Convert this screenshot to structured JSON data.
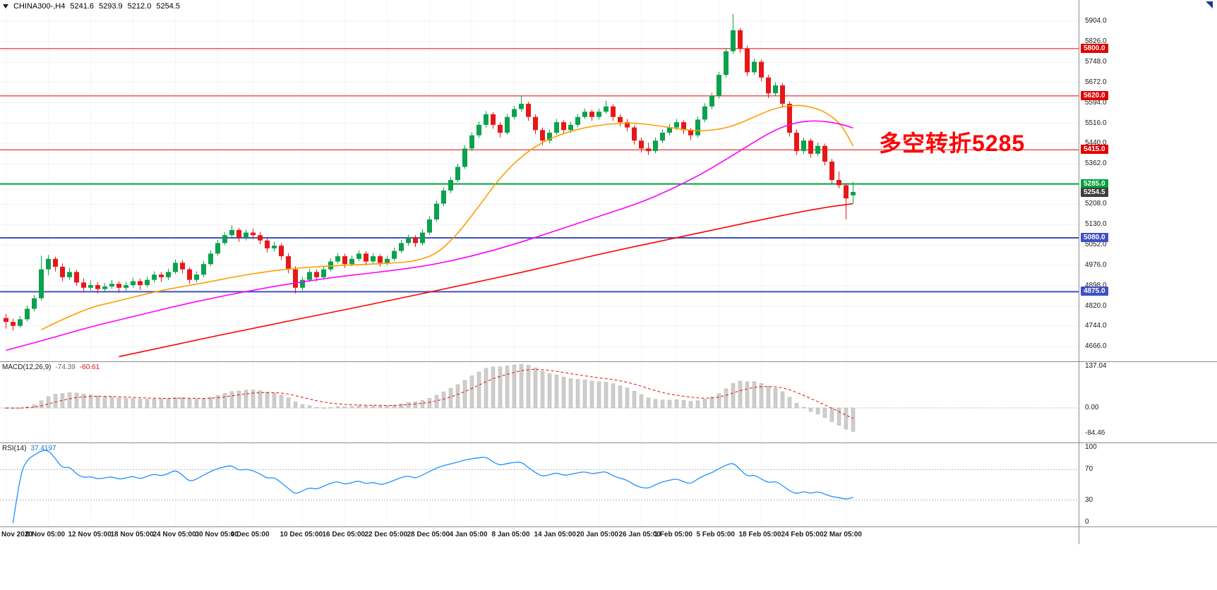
{
  "header": {
    "symbol_period": "CHINA300-,H4",
    "open": "5241.6",
    "high": "5293.9",
    "low": "5212.0",
    "close": "5254.5"
  },
  "annotation": {
    "text": "多空转折5285",
    "color": "#ff0000"
  },
  "colors": {
    "up": "#0aa24c",
    "down": "#e81717",
    "grid_h": "#f1f1f1",
    "grid_v": "#e7e7e7",
    "histogram": "#cdcdcd",
    "histogram_edge": "#b5b5b5",
    "macd_signal": "#e01010",
    "macd_zero": "#bbbbbb",
    "rsi_line": "#1e90ff",
    "rsi_level": "#b4b4b4",
    "axis_text": "#1a1a1a",
    "current_badge": "#3c3c3c",
    "level_red": "#e00000",
    "level_green": "#00a03c",
    "level_blue": "#3f51c1"
  },
  "indicators": {
    "macd": {
      "label": "MACD(12,26,9)",
      "value_main": "-74.39",
      "value_signal": "-60.61",
      "axis_labels": [
        "137.04",
        "0.00",
        "-84.46"
      ],
      "axis_max": 137.04,
      "axis_min": -84.46,
      "fast": 12,
      "slow": 26,
      "signal": 9
    },
    "rsi": {
      "label": "RSI(14)",
      "value": "37.4197",
      "axis_labels": [
        "100",
        "70",
        "30",
        "0"
      ],
      "levels": [
        70,
        30
      ],
      "period": 14
    }
  },
  "time_axis": {
    "ticks": [
      {
        "label": "Nov 2020",
        "i": 0
      },
      {
        "label": "6 Nov 05:00",
        "i": 6
      },
      {
        "label": "12 Nov 05:00",
        "i": 12
      },
      {
        "label": "18 Nov 05:00",
        "i": 18
      },
      {
        "label": "24 Nov 05:00",
        "i": 24
      },
      {
        "label": "30 Nov 05:00",
        "i": 30
      },
      {
        "label": "4 Dec 05:00",
        "i": 35
      },
      {
        "label": "10 Dec 05:00",
        "i": 42
      },
      {
        "label": "16 Dec 05:00",
        "i": 48
      },
      {
        "label": "22 Dec 05:00",
        "i": 54
      },
      {
        "label": "28 Dec 05:00",
        "i": 60
      },
      {
        "label": "4 Jan 05:00",
        "i": 66
      },
      {
        "label": "8 Jan 05:00",
        "i": 72
      },
      {
        "label": "14 Jan 05:00",
        "i": 78
      },
      {
        "label": "20 Jan 05:00",
        "i": 84
      },
      {
        "label": "26 Jan 05:00",
        "i": 90
      },
      {
        "label": "1 Feb 05:00",
        "i": 95
      },
      {
        "label": "5 Feb 05:00",
        "i": 101
      },
      {
        "label": "18 Feb 05:00",
        "i": 107
      },
      {
        "label": "24 Feb 05:00",
        "i": 113
      },
      {
        "label": "2 Mar 05:00",
        "i": 119
      }
    ]
  },
  "chart_data": {
    "type": "candlestick",
    "symbol": "CHINA300-",
    "timeframe": "H4",
    "ylim": [
      4610,
      5985
    ],
    "price_ticks": [
      5904.0,
      5826.0,
      5748.0,
      5672.0,
      5594.0,
      5516.0,
      5440.0,
      5362.0,
      5208.0,
      5130.0,
      5052.0,
      4976.0,
      4898.0,
      4820.0,
      4744.0,
      4666.0
    ],
    "hlines": [
      {
        "price": 5800.0,
        "label": "5800.0",
        "color": "#e00000",
        "width": 1
      },
      {
        "price": 5620.0,
        "label": "5620.0",
        "color": "#e00000",
        "width": 1
      },
      {
        "price": 5415.0,
        "label": "5415.0",
        "color": "#e00000",
        "width": 1
      },
      {
        "price": 5285.0,
        "label": "5285.0",
        "color": "#00a03c",
        "width": 2
      },
      {
        "price": 5080.0,
        "label": "5080.0",
        "color": "#3f51c1",
        "width": 2
      },
      {
        "price": 4875.0,
        "label": "4875.0",
        "color": "#3f51c1",
        "width": 2
      }
    ],
    "current_price": {
      "price": 5254.5,
      "label": "5254.5"
    },
    "candles": [
      [
        4775,
        4790,
        4735,
        4760
      ],
      [
        4760,
        4772,
        4728,
        4745
      ],
      [
        4745,
        4782,
        4738,
        4770
      ],
      [
        4770,
        4822,
        4762,
        4810
      ],
      [
        4810,
        4862,
        4800,
        4850
      ],
      [
        4850,
        5012,
        4842,
        4960
      ],
      [
        4960,
        5015,
        4938,
        5000
      ],
      [
        5000,
        5008,
        4952,
        4970
      ],
      [
        4970,
        4982,
        4915,
        4930
      ],
      [
        4930,
        4965,
        4920,
        4950
      ],
      [
        4950,
        4958,
        4898,
        4910
      ],
      [
        4910,
        4925,
        4872,
        4890
      ],
      [
        4890,
        4918,
        4880,
        4900
      ],
      [
        4900,
        4912,
        4868,
        4885
      ],
      [
        4885,
        4908,
        4875,
        4895
      ],
      [
        4895,
        4920,
        4885,
        4905
      ],
      [
        4905,
        4915,
        4870,
        4890
      ],
      [
        4890,
        4913,
        4878,
        4900
      ],
      [
        4900,
        4928,
        4890,
        4915
      ],
      [
        4915,
        4925,
        4882,
        4900
      ],
      [
        4900,
        4932,
        4892,
        4920
      ],
      [
        4920,
        4952,
        4910,
        4940
      ],
      [
        4940,
        4950,
        4912,
        4930
      ],
      [
        4930,
        4962,
        4920,
        4950
      ],
      [
        4950,
        4998,
        4942,
        4985
      ],
      [
        4985,
        4995,
        4945,
        4960
      ],
      [
        4960,
        4968,
        4905,
        4920
      ],
      [
        4920,
        4952,
        4910,
        4940
      ],
      [
        4940,
        4992,
        4930,
        4980
      ],
      [
        4980,
        5032,
        4972,
        5020
      ],
      [
        5020,
        5072,
        5012,
        5060
      ],
      [
        5060,
        5102,
        5052,
        5090
      ],
      [
        5090,
        5128,
        5080,
        5110
      ],
      [
        5110,
        5118,
        5065,
        5080
      ],
      [
        5080,
        5112,
        5070,
        5100
      ],
      [
        5100,
        5115,
        5075,
        5090
      ],
      [
        5090,
        5102,
        5055,
        5070
      ],
      [
        5070,
        5082,
        5025,
        5040
      ],
      [
        5040,
        5065,
        5028,
        5050
      ],
      [
        5050,
        5058,
        4995,
        5010
      ],
      [
        5010,
        5022,
        4945,
        4960
      ],
      [
        4960,
        4972,
        4868,
        4890
      ],
      [
        4890,
        4932,
        4880,
        4920
      ],
      [
        4920,
        4962,
        4912,
        4950
      ],
      [
        4950,
        4960,
        4915,
        4930
      ],
      [
        4930,
        4972,
        4922,
        4960
      ],
      [
        4960,
        5002,
        4952,
        4990
      ],
      [
        4990,
        5022,
        4982,
        5010
      ],
      [
        5010,
        5020,
        4965,
        4980
      ],
      [
        4980,
        5012,
        4972,
        5000
      ],
      [
        5000,
        5032,
        4992,
        5020
      ],
      [
        5020,
        5030,
        4975,
        4990
      ],
      [
        4990,
        5022,
        4982,
        5010
      ],
      [
        5010,
        5018,
        4970,
        4985
      ],
      [
        4985,
        5012,
        4975,
        5000
      ],
      [
        5000,
        5042,
        4992,
        5030
      ],
      [
        5030,
        5072,
        5022,
        5060
      ],
      [
        5060,
        5092,
        5050,
        5080
      ],
      [
        5080,
        5090,
        5045,
        5060
      ],
      [
        5060,
        5112,
        5052,
        5100
      ],
      [
        5100,
        5162,
        5092,
        5150
      ],
      [
        5150,
        5222,
        5142,
        5210
      ],
      [
        5210,
        5272,
        5200,
        5260
      ],
      [
        5260,
        5312,
        5250,
        5300
      ],
      [
        5300,
        5362,
        5292,
        5350
      ],
      [
        5350,
        5432,
        5342,
        5420
      ],
      [
        5420,
        5482,
        5410,
        5470
      ],
      [
        5470,
        5522,
        5460,
        5510
      ],
      [
        5510,
        5562,
        5500,
        5550
      ],
      [
        5550,
        5558,
        5495,
        5510
      ],
      [
        5510,
        5520,
        5462,
        5480
      ],
      [
        5480,
        5552,
        5472,
        5540
      ],
      [
        5540,
        5582,
        5530,
        5570
      ],
      [
        5570,
        5622,
        5560,
        5590
      ],
      [
        5590,
        5598,
        5525,
        5540
      ],
      [
        5540,
        5550,
        5475,
        5490
      ],
      [
        5490,
        5500,
        5432,
        5450
      ],
      [
        5450,
        5492,
        5440,
        5480
      ],
      [
        5480,
        5532,
        5472,
        5520
      ],
      [
        5520,
        5528,
        5475,
        5490
      ],
      [
        5490,
        5522,
        5480,
        5510
      ],
      [
        5510,
        5552,
        5500,
        5540
      ],
      [
        5540,
        5572,
        5532,
        5560
      ],
      [
        5560,
        5568,
        5525,
        5540
      ],
      [
        5540,
        5572,
        5530,
        5560
      ],
      [
        5560,
        5602,
        5552,
        5580
      ],
      [
        5580,
        5588,
        5525,
        5540
      ],
      [
        5540,
        5550,
        5505,
        5520
      ],
      [
        5520,
        5532,
        5485,
        5500
      ],
      [
        5500,
        5508,
        5435,
        5450
      ],
      [
        5450,
        5462,
        5405,
        5420
      ],
      [
        5420,
        5442,
        5395,
        5410
      ],
      [
        5410,
        5462,
        5402,
        5450
      ],
      [
        5450,
        5492,
        5440,
        5480
      ],
      [
        5480,
        5512,
        5470,
        5500
      ],
      [
        5500,
        5532,
        5490,
        5520
      ],
      [
        5520,
        5528,
        5475,
        5490
      ],
      [
        5490,
        5498,
        5452,
        5470
      ],
      [
        5470,
        5542,
        5462,
        5530
      ],
      [
        5530,
        5592,
        5520,
        5580
      ],
      [
        5580,
        5632,
        5570,
        5620
      ],
      [
        5620,
        5712,
        5610,
        5700
      ],
      [
        5700,
        5802,
        5690,
        5790
      ],
      [
        5790,
        5932,
        5780,
        5870
      ],
      [
        5870,
        5878,
        5785,
        5800
      ],
      [
        5800,
        5812,
        5695,
        5710
      ],
      [
        5710,
        5762,
        5700,
        5750
      ],
      [
        5750,
        5758,
        5675,
        5690
      ],
      [
        5690,
        5700,
        5612,
        5630
      ],
      [
        5630,
        5672,
        5620,
        5660
      ],
      [
        5660,
        5668,
        5575,
        5590
      ],
      [
        5590,
        5600,
        5465,
        5480
      ],
      [
        5480,
        5492,
        5395,
        5410
      ],
      [
        5410,
        5462,
        5400,
        5450
      ],
      [
        5450,
        5458,
        5385,
        5400
      ],
      [
        5400,
        5442,
        5390,
        5430
      ],
      [
        5430,
        5438,
        5355,
        5370
      ],
      [
        5370,
        5380,
        5285,
        5300
      ],
      [
        5300,
        5332,
        5268,
        5280
      ],
      [
        5280,
        5288,
        5150,
        5230
      ],
      [
        5241.6,
        5293.9,
        5212.0,
        5254.5
      ]
    ],
    "moving_averages": [
      {
        "name": "ma-fast-orange",
        "color": "#ff9d00",
        "points": [
          [
            5,
            4730
          ],
          [
            11,
            4810
          ],
          [
            16,
            4840
          ],
          [
            20,
            4868
          ],
          [
            24,
            4890
          ],
          [
            28,
            4908
          ],
          [
            32,
            4930
          ],
          [
            36,
            4948
          ],
          [
            40,
            4962
          ],
          [
            44,
            4970
          ],
          [
            48,
            4976
          ],
          [
            52,
            4980
          ],
          [
            56,
            4986
          ],
          [
            58,
            4992
          ],
          [
            61,
            5018
          ],
          [
            64,
            5095
          ],
          [
            67,
            5200
          ],
          [
            70,
            5310
          ],
          [
            73,
            5390
          ],
          [
            76,
            5445
          ],
          [
            79,
            5478
          ],
          [
            82,
            5500
          ],
          [
            85,
            5512
          ],
          [
            88,
            5518
          ],
          [
            91,
            5512
          ],
          [
            94,
            5500
          ],
          [
            97,
            5488
          ],
          [
            100,
            5488
          ],
          [
            103,
            5505
          ],
          [
            106,
            5540
          ],
          [
            109,
            5575
          ],
          [
            112,
            5586
          ],
          [
            114,
            5578
          ],
          [
            116,
            5560
          ],
          [
            118,
            5520
          ],
          [
            119,
            5480
          ],
          [
            120,
            5430
          ]
        ]
      },
      {
        "name": "ma-mid-magenta",
        "color": "#ff00ff",
        "points": [
          [
            0,
            4652
          ],
          [
            6,
            4695
          ],
          [
            12,
            4742
          ],
          [
            18,
            4780
          ],
          [
            24,
            4820
          ],
          [
            30,
            4855
          ],
          [
            36,
            4886
          ],
          [
            42,
            4913
          ],
          [
            48,
            4935
          ],
          [
            54,
            4953
          ],
          [
            60,
            4975
          ],
          [
            66,
            5010
          ],
          [
            72,
            5055
          ],
          [
            78,
            5108
          ],
          [
            84,
            5162
          ],
          [
            90,
            5215
          ],
          [
            94,
            5262
          ],
          [
            98,
            5315
          ],
          [
            102,
            5378
          ],
          [
            106,
            5445
          ],
          [
            109,
            5492
          ],
          [
            112,
            5520
          ],
          [
            115,
            5527
          ],
          [
            118,
            5515
          ],
          [
            120,
            5498
          ]
        ]
      },
      {
        "name": "ma-slow-red",
        "color": "#ff0000",
        "points": [
          [
            16,
            4628
          ],
          [
            25,
            4680
          ],
          [
            35,
            4736
          ],
          [
            45,
            4790
          ],
          [
            55,
            4845
          ],
          [
            65,
            4902
          ],
          [
            75,
            4960
          ],
          [
            85,
            5024
          ],
          [
            95,
            5080
          ],
          [
            105,
            5138
          ],
          [
            115,
            5192
          ],
          [
            120,
            5210
          ]
        ]
      }
    ]
  }
}
